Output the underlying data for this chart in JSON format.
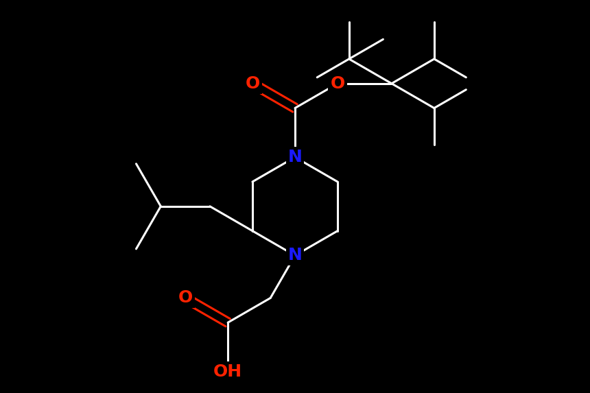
{
  "background_color": "#000000",
  "bond_color": "#ffffff",
  "N_color": "#1a1aff",
  "O_color": "#ff2200",
  "bond_width": 2.2,
  "font_size_N": 18,
  "font_size_O": 18,
  "font_size_OH": 18,
  "figsize": [
    8.6,
    5.73
  ],
  "dpi": 100,
  "xlim": [
    0,
    10
  ],
  "ylim": [
    0,
    8
  ]
}
